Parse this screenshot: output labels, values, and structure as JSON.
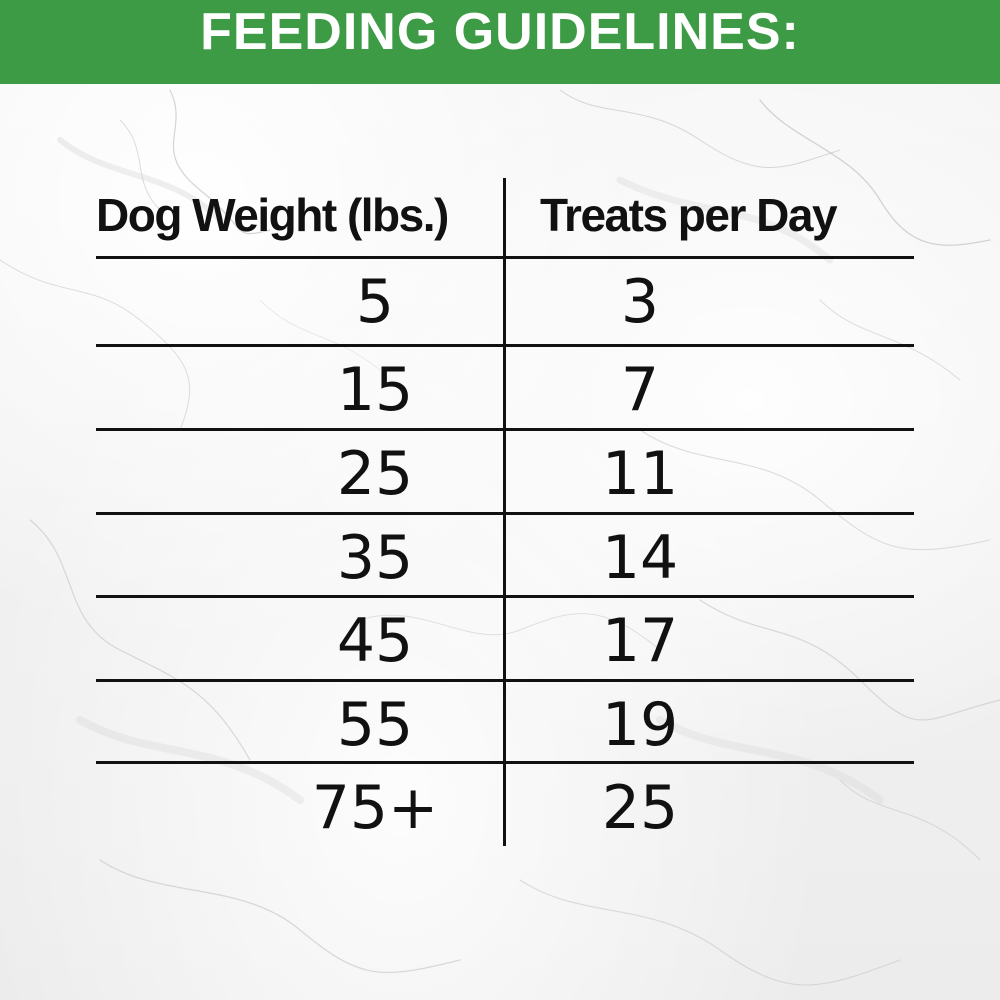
{
  "header": {
    "title": "FEEDING GUIDELINES:",
    "background_color": "#3d9b45"
  },
  "table": {
    "columns": {
      "weight": "Dog Weight (lbs.)",
      "treats": "Treats per Day"
    },
    "rows": [
      {
        "weight": "5",
        "treats": "3"
      },
      {
        "weight": "15",
        "treats": "7"
      },
      {
        "weight": "25",
        "treats": "11"
      },
      {
        "weight": "35",
        "treats": "14"
      },
      {
        "weight": "45",
        "treats": "17"
      },
      {
        "weight": "55",
        "treats": "19"
      },
      {
        "weight": "75+",
        "treats": "25"
      }
    ]
  },
  "chart_data": {
    "type": "table",
    "columns": [
      "Dog Weight (lbs.)",
      "Treats per Day"
    ],
    "rows": [
      [
        "5",
        "3"
      ],
      [
        "15",
        "7"
      ],
      [
        "25",
        "11"
      ],
      [
        "35",
        "14"
      ],
      [
        "45",
        "17"
      ],
      [
        "55",
        "19"
      ],
      [
        "75+",
        "25"
      ]
    ]
  }
}
